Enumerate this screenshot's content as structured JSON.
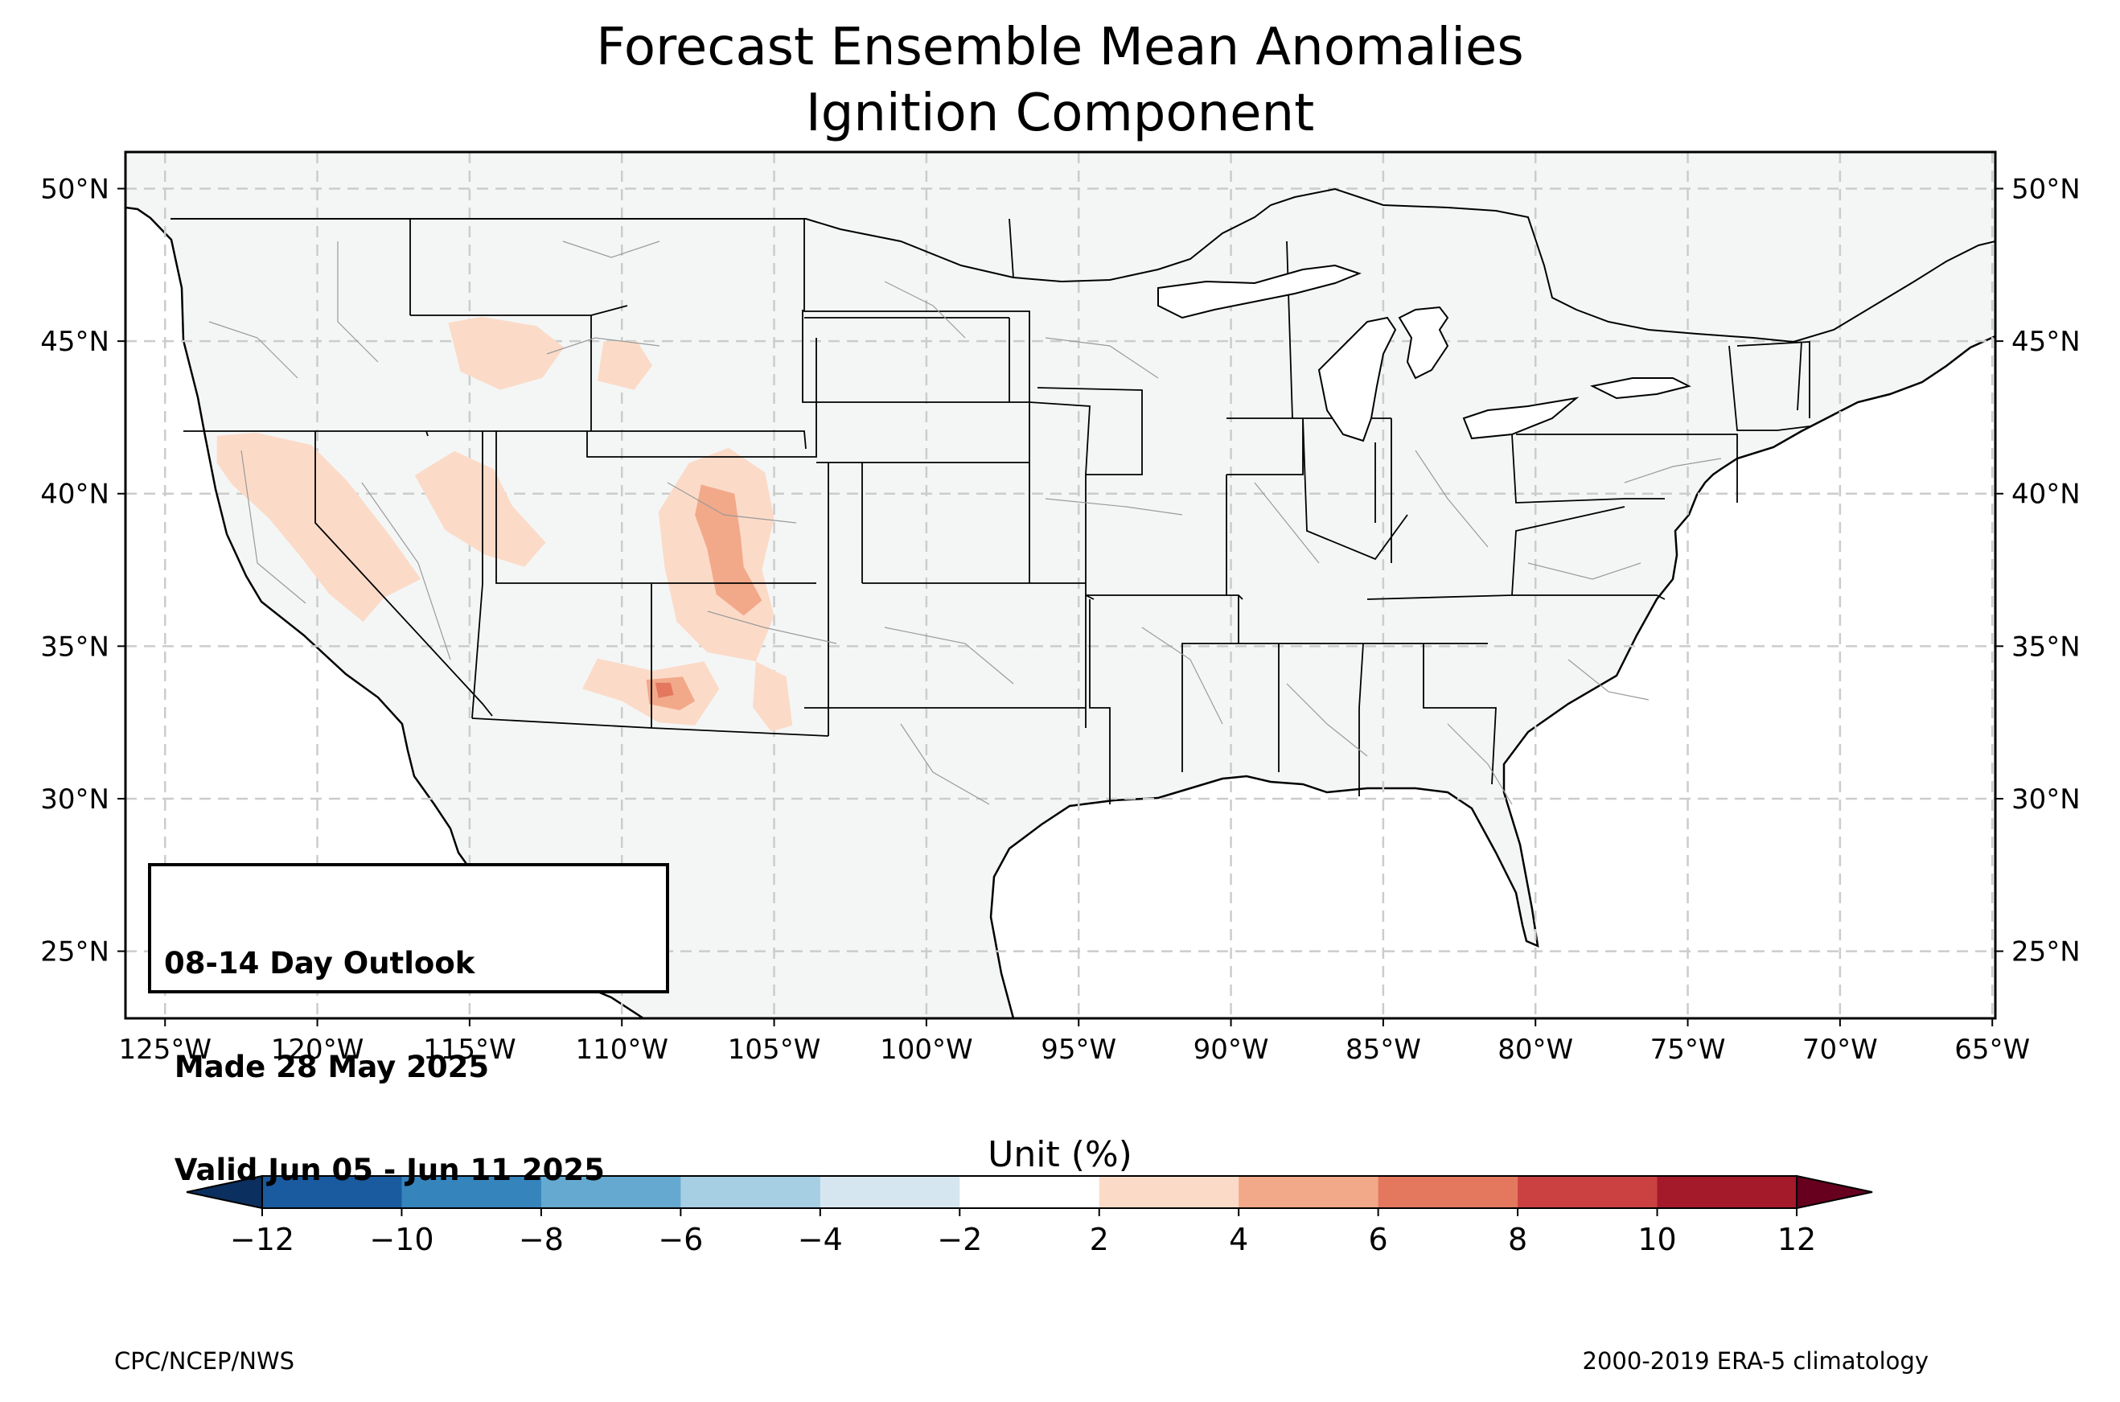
{
  "title": {
    "line1": "Forecast Ensemble Mean Anomalies",
    "line2": "Ignition Component"
  },
  "map": {
    "extent": {
      "lon_min": -126.3,
      "lon_max": -64.9,
      "lat_min": 22.8,
      "lat_max": 51.2
    },
    "lat_ticks": [
      25,
      30,
      35,
      40,
      45,
      50
    ],
    "lon_ticks": [
      -125,
      -120,
      -115,
      -110,
      -105,
      -100,
      -95,
      -90,
      -85,
      -80,
      -75,
      -70,
      -65
    ],
    "lat_labels": [
      "25°N",
      "30°N",
      "35°N",
      "40°N",
      "45°N",
      "50°N"
    ],
    "lon_labels": [
      "125°W",
      "120°W",
      "115°W",
      "110°W",
      "105°W",
      "100°W",
      "95°W",
      "90°W",
      "85°W",
      "80°W",
      "75°W",
      "70°W",
      "65°W"
    ],
    "land_color": "#f4f6f6",
    "ocean_color": "#ffffff",
    "gridlines": true,
    "anomaly_regions": [
      {
        "name": "california-nevada",
        "level": "2-4",
        "color": "#fbdbc8",
        "polygon": [
          [
            -123.3,
            41.9
          ],
          [
            -122.0,
            42.0
          ],
          [
            -120.2,
            41.6
          ],
          [
            -119.0,
            40.4
          ],
          [
            -117.6,
            38.6
          ],
          [
            -116.6,
            37.2
          ],
          [
            -117.8,
            36.6
          ],
          [
            -118.5,
            35.8
          ],
          [
            -119.6,
            36.7
          ],
          [
            -120.6,
            38.0
          ],
          [
            -121.6,
            39.2
          ],
          [
            -122.8,
            40.3
          ],
          [
            -123.3,
            41.0
          ]
        ]
      },
      {
        "name": "nevada-utah",
        "level": "2-4",
        "color": "#fbdbc8",
        "polygon": [
          [
            -116.8,
            40.6
          ],
          [
            -115.5,
            41.4
          ],
          [
            -114.2,
            40.8
          ],
          [
            -113.6,
            39.6
          ],
          [
            -112.5,
            38.4
          ],
          [
            -113.2,
            37.6
          ],
          [
            -114.5,
            38.0
          ],
          [
            -115.8,
            38.8
          ]
        ]
      },
      {
        "name": "idaho-montana",
        "level": "2-4",
        "color": "#fbdbc8",
        "polygon": [
          [
            -115.7,
            45.6
          ],
          [
            -114.6,
            45.8
          ],
          [
            -112.8,
            45.5
          ],
          [
            -111.9,
            44.8
          ],
          [
            -112.6,
            43.8
          ],
          [
            -114.0,
            43.4
          ],
          [
            -115.3,
            44.0
          ]
        ]
      },
      {
        "name": "wyoming",
        "level": "2-4",
        "color": "#fbdbc8",
        "polygon": [
          [
            -110.6,
            45.0
          ],
          [
            -109.5,
            45.0
          ],
          [
            -109.0,
            44.2
          ],
          [
            -109.6,
            43.4
          ],
          [
            -110.8,
            43.7
          ]
        ]
      },
      {
        "name": "colorado-new-mexico",
        "level": "2-4",
        "color": "#fbdbc8",
        "polygon": [
          [
            -107.8,
            41.0
          ],
          [
            -106.5,
            41.5
          ],
          [
            -105.3,
            40.7
          ],
          [
            -105.0,
            39.2
          ],
          [
            -105.4,
            37.5
          ],
          [
            -105.0,
            36.0
          ],
          [
            -105.6,
            34.5
          ],
          [
            -107.2,
            34.8
          ],
          [
            -108.2,
            35.8
          ],
          [
            -108.6,
            37.6
          ],
          [
            -108.8,
            39.4
          ]
        ]
      },
      {
        "name": "arizona-new-mexico",
        "level": "2-4",
        "color": "#fbdbc8",
        "polygon": [
          [
            -110.8,
            34.6
          ],
          [
            -109.0,
            34.2
          ],
          [
            -107.3,
            34.5
          ],
          [
            -106.8,
            33.6
          ],
          [
            -107.6,
            32.4
          ],
          [
            -108.8,
            32.5
          ],
          [
            -110.0,
            33.2
          ],
          [
            -111.3,
            33.6
          ]
        ]
      },
      {
        "name": "eastern-new-mexico",
        "level": "2-4",
        "color": "#fbdbc8",
        "polygon": [
          [
            -105.6,
            34.5
          ],
          [
            -104.6,
            34.0
          ],
          [
            -104.4,
            32.4
          ],
          [
            -105.1,
            32.2
          ],
          [
            -105.7,
            33.0
          ]
        ]
      },
      {
        "name": "colorado-core",
        "level": "4-6",
        "color": "#f2a98a",
        "polygon": [
          [
            -107.4,
            40.3
          ],
          [
            -106.3,
            40.0
          ],
          [
            -106.1,
            38.6
          ],
          [
            -106.0,
            37.6
          ],
          [
            -105.4,
            36.5
          ],
          [
            -106.0,
            36.0
          ],
          [
            -106.9,
            36.7
          ],
          [
            -107.2,
            38.2
          ],
          [
            -107.6,
            39.3
          ]
        ]
      },
      {
        "name": "southwest-new-mexico",
        "level": "4-6",
        "color": "#f2a98a",
        "polygon": [
          [
            -109.2,
            33.9
          ],
          [
            -108.0,
            34.0
          ],
          [
            -107.6,
            33.2
          ],
          [
            -108.1,
            32.9
          ],
          [
            -109.1,
            33.1
          ]
        ]
      },
      {
        "name": "southwest-new-mexico-core",
        "level": "6-8",
        "color": "#e3785f",
        "polygon": [
          [
            -108.9,
            33.8
          ],
          [
            -108.4,
            33.8
          ],
          [
            -108.3,
            33.4
          ],
          [
            -108.8,
            33.3
          ]
        ]
      }
    ]
  },
  "outlook": {
    "line1": "08-14 Day Outlook",
    "line2": " Made 28 May 2025",
    "line3": " Valid Jun 05 - Jun 11 2025"
  },
  "colorbar": {
    "title": "Unit (%)",
    "ticks": [
      "−12",
      "−10",
      "−8",
      "−6",
      "−4",
      "−2",
      "2",
      "4",
      "6",
      "8",
      "10",
      "12"
    ],
    "colors": [
      "#1a5a9e",
      "#3684bc",
      "#66a9d0",
      "#a6cfe4",
      "#d6e6f0",
      "#ffffff",
      "#fbdbc8",
      "#f2a98a",
      "#e3785f",
      "#cb4142",
      "#a51a2a"
    ],
    "under_color": "#0b2f5e",
    "over_color": "#67001f"
  },
  "footer": {
    "left": "CPC/NCEP/NWS",
    "right": "2000-2019 ERA-5 climatology"
  }
}
